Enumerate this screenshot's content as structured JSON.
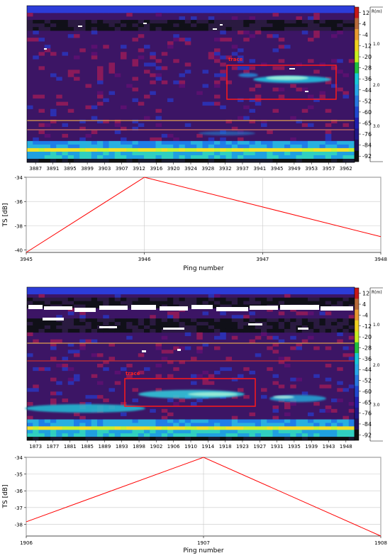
{
  "chart_data": [
    {
      "type": "heatmap",
      "title": "",
      "xlabel": "",
      "ylabel": "",
      "x_tick_labels": [
        "3887",
        "3891",
        "3895",
        "3899",
        "3903",
        "3907",
        "3912",
        "3916",
        "3920",
        "3924",
        "3928",
        "3932",
        "3937",
        "3941",
        "3945",
        "3949",
        "3953",
        "3957",
        "3962"
      ],
      "colorbar_labels": [
        "12",
        "4",
        "-4",
        "-12",
        "-20",
        "-28",
        "-36",
        "-44",
        "-52",
        "-60",
        "-65",
        "-76",
        "-84",
        "-92"
      ],
      "range_axis_label": "R(m)",
      "range_ticks": [
        "1.0",
        "2.0",
        "3.0"
      ],
      "annotation": "trace",
      "trace_ping_range": [
        3932,
        3962
      ],
      "surface_bands_rows": [
        1,
        12
      ]
    },
    {
      "type": "line",
      "xlabel": "Ping number",
      "ylabel": "TS [dB]",
      "x": [
        3945,
        3946,
        3947,
        3948
      ],
      "series": [
        {
          "values": [
            -40.2,
            -34.0,
            -36.45,
            -38.9
          ],
          "color": "#ff0000"
        }
      ],
      "xlim": [
        3945,
        3948
      ],
      "ylim": [
        -40.2,
        -34.0
      ],
      "x_ticks": [
        "3945",
        "3946",
        "3947",
        "3948"
      ],
      "y_ticks": [
        "-34",
        "-36",
        "-38",
        "-40"
      ],
      "grid": true
    },
    {
      "type": "heatmap",
      "title": "",
      "xlabel": "",
      "ylabel": "",
      "x_tick_labels": [
        "1873",
        "1877",
        "1881",
        "1885",
        "1889",
        "1893",
        "1898",
        "1902",
        "1906",
        "1910",
        "1914",
        "1918",
        "1923",
        "1927",
        "1931",
        "1935",
        "1939",
        "1943",
        "1948"
      ],
      "colorbar_labels": [
        "12",
        "4",
        "-4",
        "-12",
        "-20",
        "-28",
        "-36",
        "-44",
        "-52",
        "-60",
        "-65",
        "-76",
        "-84",
        "-92"
      ],
      "range_axis_label": "R(m)",
      "range_ticks": [
        "1.0",
        "2.0",
        "3.0"
      ],
      "annotation": "trace",
      "trace_ping_range": [
        1893,
        1923
      ]
    },
    {
      "type": "line",
      "xlabel": "Ping number",
      "ylabel": "TS [dB]",
      "x": [
        1906,
        1907,
        1908
      ],
      "series": [
        {
          "values": [
            -37.85,
            -34.0,
            -38.7
          ],
          "color": "#ff0000"
        }
      ],
      "xlim": [
        1906,
        1908
      ],
      "ylim": [
        -38.7,
        -34.0
      ],
      "x_ticks": [
        "1906",
        "1907",
        "1908"
      ],
      "y_ticks": [
        "-34",
        "-35",
        "-36",
        "-37",
        "-38"
      ],
      "grid": true
    }
  ]
}
